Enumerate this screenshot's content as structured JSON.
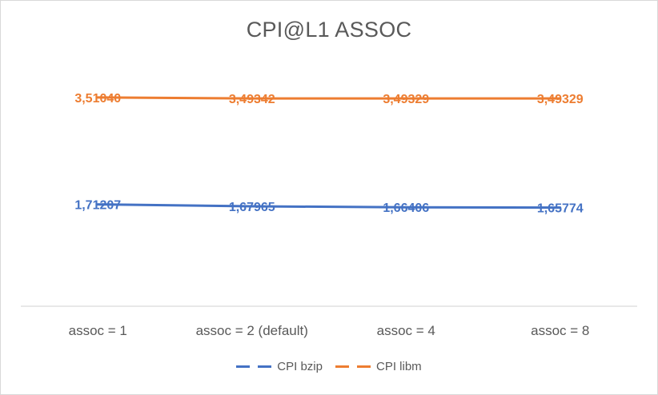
{
  "chart_data": {
    "type": "line",
    "title": "CPI@L1 ASSOC",
    "categories": [
      "assoc = 1",
      "assoc = 2 (default)",
      "assoc = 4",
      "assoc = 8"
    ],
    "series": [
      {
        "name": "CPI bzip",
        "color": "#4472c4",
        "values": [
          1.71207,
          1.67965,
          1.66406,
          1.65774
        ],
        "labels": [
          "1,71207",
          "1,67965",
          "1,66406",
          "1,65774"
        ]
      },
      {
        "name": "CPI libm",
        "color": "#ed7d31",
        "values": [
          3.5104,
          3.49342,
          3.49329,
          3.49329
        ],
        "labels": [
          "3,51040",
          "3,49342",
          "3,49329",
          "3,49329"
        ]
      }
    ],
    "ylim": [
      0,
      4.5
    ],
    "xlabel": "",
    "ylabel": "",
    "grid": false,
    "legend_position": "bottom"
  }
}
